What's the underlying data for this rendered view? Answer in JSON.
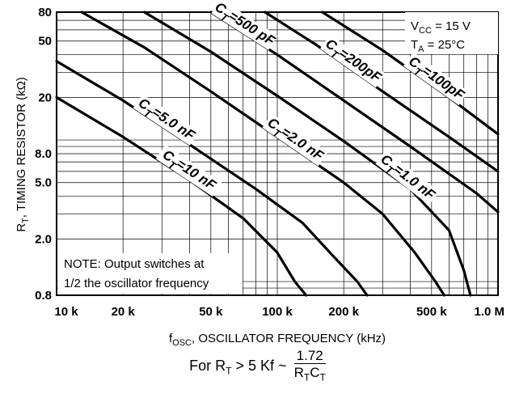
{
  "chart_data": {
    "type": "line",
    "x_scale": "log",
    "y_scale": "log",
    "xlim": [
      10,
      1000
    ],
    "ylim": [
      0.8,
      80
    ],
    "grid": true,
    "xlabel": {
      "pre": "f",
      "sub": "OSC",
      "post": ", OSCILLATOR FREQUENCY (kHz)"
    },
    "ylabel": {
      "pre": "R",
      "sub": "T",
      "post": ", TIMING RESISTOR (kΩ)"
    },
    "x_ticks": [
      {
        "value": 10,
        "label": "10 k"
      },
      {
        "value": 20,
        "label": "20 k"
      },
      {
        "value": 50,
        "label": "50 k"
      },
      {
        "value": 100,
        "label": "100 k"
      },
      {
        "value": 200,
        "label": "200 k"
      },
      {
        "value": 500,
        "label": "500 k"
      },
      {
        "value": 1000,
        "label": "1.0 M"
      }
    ],
    "y_ticks": [
      {
        "value": 0.8,
        "label": "0.8"
      },
      {
        "value": 2.0,
        "label": "2.0"
      },
      {
        "value": 5.0,
        "label": "5.0"
      },
      {
        "value": 8.0,
        "label": "8.0"
      },
      {
        "value": 20,
        "label": "20"
      },
      {
        "value": 50,
        "label": "50"
      },
      {
        "value": 80,
        "label": "80"
      }
    ],
    "conditions": [
      {
        "pre": "V",
        "sub": "CC",
        "post": " = 15 V"
      },
      {
        "pre": "T",
        "sub": "A",
        "post": " = 25°C"
      }
    ],
    "note": [
      "NOTE: Output switches at",
      "1/2 the oscillator frequency"
    ],
    "series": [
      {
        "name": "=10 nF",
        "points": [
          [
            10,
            20
          ],
          [
            20,
            10.5
          ],
          [
            40,
            5.2
          ],
          [
            70,
            2.8
          ],
          [
            100,
            1.6
          ],
          [
            120,
            1.0
          ],
          [
            135,
            0.8
          ]
        ]
      },
      {
        "name": "=5.0 nF",
        "points": [
          [
            10,
            36
          ],
          [
            20,
            19
          ],
          [
            40,
            9.3
          ],
          [
            80,
            4.5
          ],
          [
            130,
            2.6
          ],
          [
            180,
            1.5
          ],
          [
            230,
            1.0
          ],
          [
            255,
            0.8
          ]
        ]
      },
      {
        "name": "=2.0 nF",
        "points": [
          [
            13,
            80
          ],
          [
            25,
            45
          ],
          [
            50,
            22
          ],
          [
            100,
            10.5
          ],
          [
            200,
            5.0
          ],
          [
            300,
            3.0
          ],
          [
            420,
            1.6
          ],
          [
            520,
            1.0
          ],
          [
            570,
            0.8
          ]
        ]
      },
      {
        "name": "=1.0 nF",
        "points": [
          [
            25,
            80
          ],
          [
            50,
            42
          ],
          [
            100,
            20.5
          ],
          [
            200,
            9.8
          ],
          [
            400,
            4.5
          ],
          [
            600,
            2.3
          ],
          [
            700,
            1.2
          ],
          [
            750,
            0.8
          ]
        ]
      },
      {
        "name": "=500 pF",
        "points": [
          [
            50,
            80
          ],
          [
            100,
            40
          ],
          [
            200,
            19
          ],
          [
            400,
            9.0
          ],
          [
            800,
            4.2
          ],
          [
            1000,
            3.1
          ]
        ]
      },
      {
        "name": "=200pF",
        "points": [
          [
            88,
            80
          ],
          [
            150,
            47
          ],
          [
            300,
            22
          ],
          [
            600,
            10.5
          ],
          [
            1000,
            6.0
          ]
        ]
      },
      {
        "name": "=100pF",
        "points": [
          [
            160,
            80
          ],
          [
            300,
            43
          ],
          [
            600,
            20
          ],
          [
            1000,
            11.0
          ]
        ]
      }
    ],
    "curve_label_prefix": {
      "pre": "C",
      "sub": "T"
    }
  },
  "footer": {
    "prefix_pre": "For R",
    "prefix_sub": "T",
    "prefix_post": " > 5 Kf ~",
    "numerator": "1.72",
    "den_r": "R",
    "den_r_sub": "T",
    "den_c": "C",
    "den_c_sub": "T"
  }
}
